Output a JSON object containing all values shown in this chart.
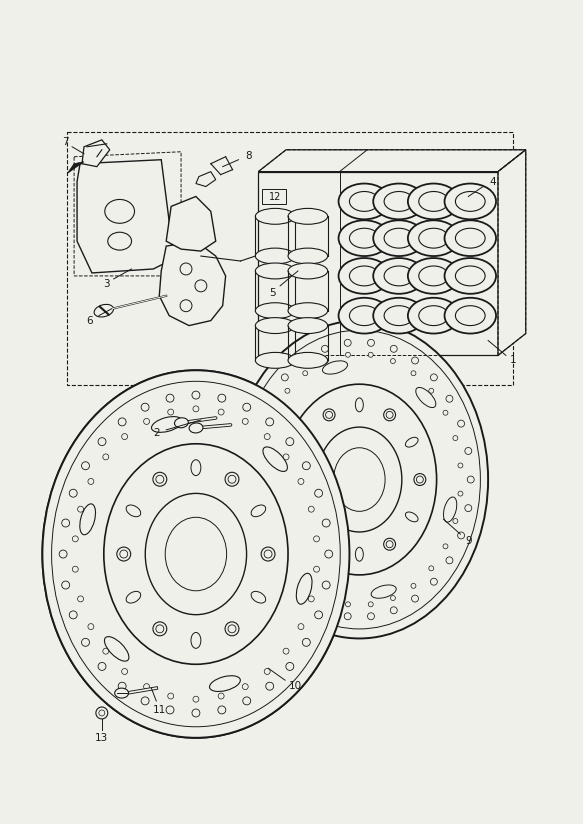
{
  "bg_color": "#f0f0eb",
  "line_color": "#1a1a1a",
  "label_color": "#1a1a1a",
  "figsize": [
    5.83,
    8.24
  ],
  "dpi": 100,
  "label_fontsize": 7.5
}
